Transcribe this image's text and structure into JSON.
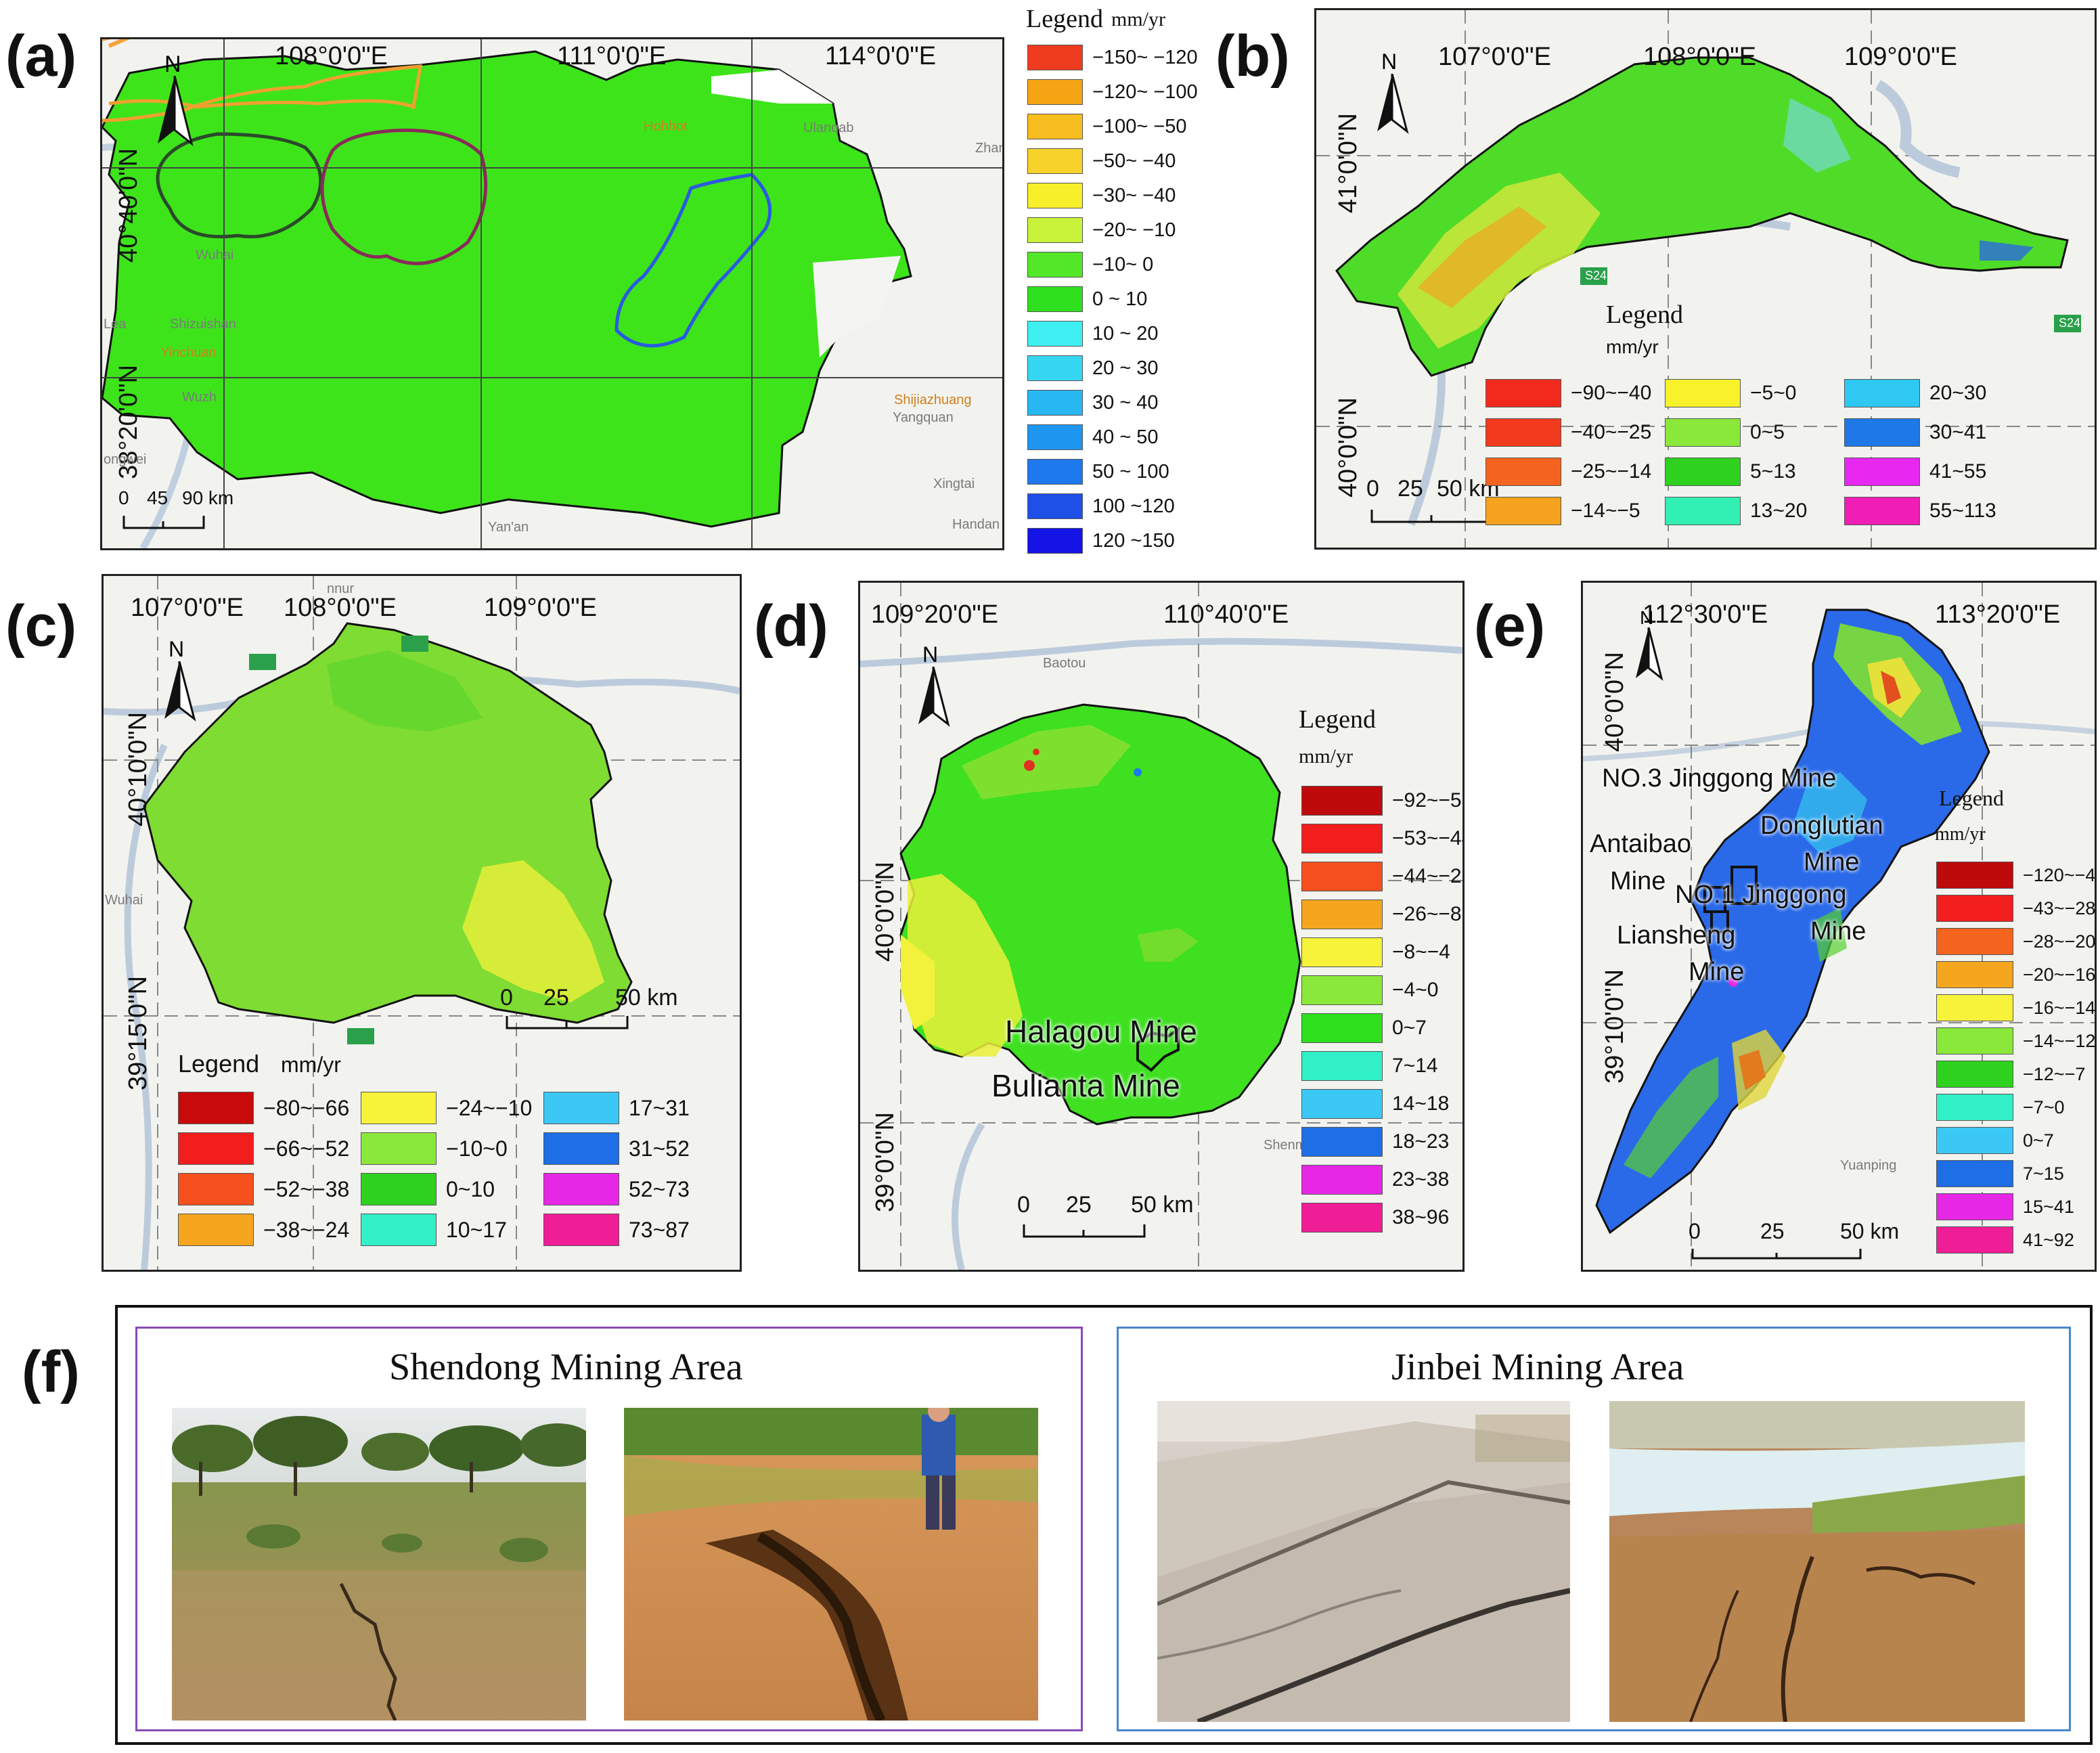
{
  "panels": {
    "a": {
      "letter": "(a)",
      "north": "N",
      "top_labels": [
        "108°0'0\"E",
        "111°0'0\"E",
        "114°0'0\"E"
      ],
      "side_labels": [
        "40°40'0\"N",
        "38°20'0\"N"
      ],
      "places": [
        "Hohhot",
        "Ulanqab",
        "Zhan",
        "Wuhai",
        "Shizuishan",
        "Yinchuan",
        "Wuzh",
        "ongwei",
        "Shijiazhuang",
        "Yangquan",
        "Xingtai",
        "Yan'an",
        "Handan",
        "Lea"
      ],
      "scale": [
        "0",
        "45",
        "90 km"
      ],
      "legend": {
        "title": "Legend",
        "unit": "mm/yr",
        "items": [
          {
            "label": "−150~ −120",
            "color": "#f03c1e"
          },
          {
            "label": "−120~ −100",
            "color": "#f5a514"
          },
          {
            "label": "−100~ −50",
            "color": "#f7bd1e"
          },
          {
            "label": "−50~ −40",
            "color": "#f7d22a"
          },
          {
            "label": "−30~ −40",
            "color": "#f7ef2a"
          },
          {
            "label": "−20~ −10",
            "color": "#c9f23a"
          },
          {
            "label": "−10~ 0",
            "color": "#52e828"
          },
          {
            "label": "0 ~ 10",
            "color": "#2ee01e"
          },
          {
            "label": "10 ~ 20",
            "color": "#3ff0f2"
          },
          {
            "label": "20 ~ 30",
            "color": "#35d6f2"
          },
          {
            "label": "30 ~ 40",
            "color": "#28b7f2"
          },
          {
            "label": "40 ~ 50",
            "color": "#1e96f0"
          },
          {
            "label": "50 ~ 100",
            "color": "#1e78ee"
          },
          {
            "label": "100 ~120",
            "color": "#1e50e8"
          },
          {
            "label": "120 ~150",
            "color": "#1414e6"
          }
        ]
      }
    },
    "b": {
      "letter": "(b)",
      "north": "N",
      "top_labels": [
        "107°0'0\"E",
        "108°0'0\"E",
        "109°0'0\"E"
      ],
      "side_labels": [
        "41°0'0\"N",
        "40°0'0\"N"
      ],
      "road": "S24",
      "scale": [
        "0",
        "25",
        "50 km"
      ],
      "legend": {
        "title": "Legend",
        "unit": "mm/yr",
        "items": [
          {
            "label": "−90~−40",
            "color": "#f22a1e"
          },
          {
            "label": "−40~−25",
            "color": "#f23a1e"
          },
          {
            "label": "−25~−14",
            "color": "#f5641e"
          },
          {
            "label": "−14~−5",
            "color": "#f5a21e"
          },
          {
            "label": "−5~0",
            "color": "#f7f22a"
          },
          {
            "label": "0~5",
            "color": "#8ae83a"
          },
          {
            "label": "5~13",
            "color": "#2ed21e"
          },
          {
            "label": "13~20",
            "color": "#32f0b4"
          },
          {
            "label": "20~30",
            "color": "#2ec8f2"
          },
          {
            "label": "30~41",
            "color": "#1e78e6"
          },
          {
            "label": "41~55",
            "color": "#e628f0"
          },
          {
            "label": "55~113",
            "color": "#f01eb4"
          }
        ]
      }
    },
    "c": {
      "letter": "(c)",
      "north": "N",
      "top_labels": [
        "107°0'0\"E",
        "108°0'0\"E",
        "109°0'0\"E"
      ],
      "side_labels": [
        "40°10'0\"N",
        "39°15'0\"N"
      ],
      "places": [
        "Wuhai",
        "nnur"
      ],
      "scale": [
        "0",
        "25",
        "50 km"
      ],
      "legend": {
        "title": "Legend",
        "unit": "mm/yr",
        "items": [
          {
            "label": "−80~−66",
            "color": "#c80a0a"
          },
          {
            "label": "−66~−52",
            "color": "#f21e1e"
          },
          {
            "label": "−52~−38",
            "color": "#f5501e"
          },
          {
            "label": "−38~−24",
            "color": "#f5a51e"
          },
          {
            "label": "−24~−10",
            "color": "#f7f23a"
          },
          {
            "label": "−10~0",
            "color": "#8ae83a"
          },
          {
            "label": "0~10",
            "color": "#2ed21e"
          },
          {
            "label": "10~17",
            "color": "#32f0c8"
          },
          {
            "label": "17~31",
            "color": "#3cc8f5"
          },
          {
            "label": "31~52",
            "color": "#1e6ee6"
          },
          {
            "label": "52~73",
            "color": "#e628e6"
          },
          {
            "label": "73~87",
            "color": "#f01e96"
          }
        ]
      }
    },
    "d": {
      "letter": "(d)",
      "north": "N",
      "top_labels": [
        "109°20'0\"E",
        "110°40'0\"E"
      ],
      "side_labels": [
        "40°0'0\"N",
        "39°0'0\"N"
      ],
      "places": [
        "Baotou",
        "Shenmu"
      ],
      "mines": [
        "Halagou Mine",
        "Bulianta Mine"
      ],
      "scale": [
        "0",
        "25",
        "50 km"
      ],
      "legend": {
        "title": "Legend",
        "unit": "mm/yr",
        "items": [
          {
            "label": "−92~−53",
            "color": "#be0a0a"
          },
          {
            "label": "−53~−44",
            "color": "#f21e1e"
          },
          {
            "label": "−44~−26",
            "color": "#f5501e"
          },
          {
            "label": "−26~−8",
            "color": "#f5a51e"
          },
          {
            "label": "−8~−4",
            "color": "#f7f23a"
          },
          {
            "label": "−4~0",
            "color": "#8ae83a"
          },
          {
            "label": "0~7",
            "color": "#2ee01e"
          },
          {
            "label": "7~14",
            "color": "#32f0c8"
          },
          {
            "label": "14~18",
            "color": "#3cc8f5"
          },
          {
            "label": "18~23",
            "color": "#1e6ee6"
          },
          {
            "label": "23~38",
            "color": "#e628e6"
          },
          {
            "label": "38~96",
            "color": "#f01e96"
          }
        ]
      }
    },
    "e": {
      "letter": "(e)",
      "north": "N",
      "top_labels": [
        "112°30'0\"E",
        "113°20'0\"E"
      ],
      "side_labels": [
        "40°0'0\"N",
        "39°10'0\"N"
      ],
      "places": [
        "Yuanping"
      ],
      "mines": [
        "NO.3 Jinggong Mine",
        "Antaibao",
        "Mine",
        "Donglutian",
        "Mine",
        "NO.1 Jinggong",
        "Mine",
        "Liansheng",
        "Mine"
      ],
      "scale": [
        "0",
        "25",
        "50 km"
      ],
      "legend": {
        "title": "Legend",
        "unit": "mm/yr",
        "items": [
          {
            "label": "−120~−43",
            "color": "#be0a0a"
          },
          {
            "label": "−43~−28",
            "color": "#f21e1e"
          },
          {
            "label": "−28~−20",
            "color": "#f5641e"
          },
          {
            "label": "−20~−16",
            "color": "#f5a51e"
          },
          {
            "label": "−16~−14",
            "color": "#f7f23a"
          },
          {
            "label": "−14~−12",
            "color": "#8ae83a"
          },
          {
            "label": "−12~−7",
            "color": "#2ed21e"
          },
          {
            "label": "−7~0",
            "color": "#32f0c8"
          },
          {
            "label": "0~7",
            "color": "#3cc8f5"
          },
          {
            "label": "7~15",
            "color": "#1e6ee6"
          },
          {
            "label": "15~41",
            "color": "#e628e6"
          },
          {
            "label": "41~92",
            "color": "#f01e96"
          }
        ]
      }
    },
    "f": {
      "letter": "(f)",
      "left_title": "Shendong Mining Area",
      "right_title": "Jinbei Mining Area",
      "left_color": "#8a4bb4",
      "right_color": "#4a86c8"
    }
  }
}
